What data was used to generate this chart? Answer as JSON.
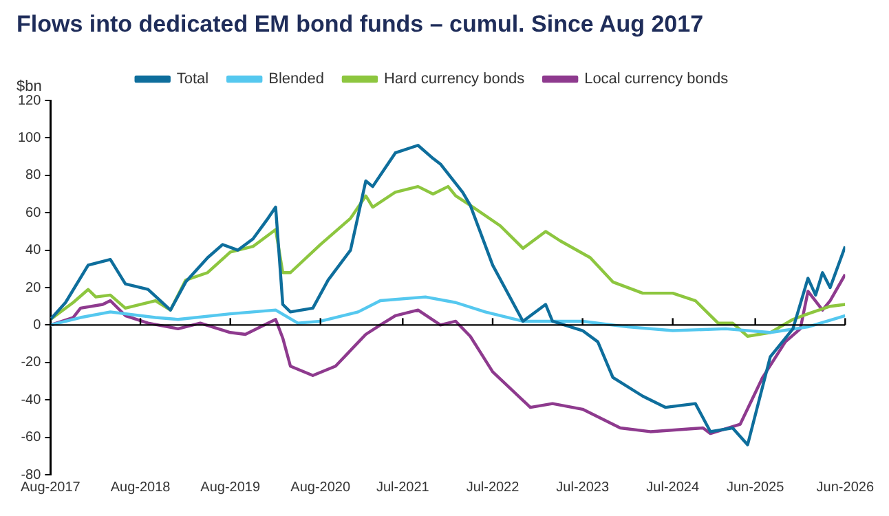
{
  "chart_data": {
    "type": "line",
    "title": "Flows into dedicated EM bond funds – cumul. Since Aug 2017",
    "ylabel": "$bn",
    "xlim": [
      "2017-08",
      "2026-06"
    ],
    "xticks": [
      {
        "value": "2017-08",
        "label": "Aug-2017"
      },
      {
        "value": "2018-08",
        "label": "Aug-2018"
      },
      {
        "value": "2019-08",
        "label": "Aug-2019"
      },
      {
        "value": "2020-08",
        "label": "Aug-2020"
      },
      {
        "value": "2021-07",
        "label": "Jul-2021"
      },
      {
        "value": "2022-07",
        "label": "Jul-2022"
      },
      {
        "value": "2023-07",
        "label": "Jul-2023"
      },
      {
        "value": "2024-07",
        "label": "Jul-2024"
      },
      {
        "value": "2025-06",
        "label": "Jun-2025"
      },
      {
        "value": "2026-06",
        "label": "Jun-2026"
      }
    ],
    "ylim": [
      -80,
      120
    ],
    "yticks": [
      -80,
      -60,
      -40,
      -20,
      0,
      20,
      40,
      60,
      80,
      100,
      120
    ],
    "grid": false,
    "legend": "top",
    "marker": "none",
    "line_style": "solid",
    "ref_lines": [
      {
        "axis": "y",
        "value": 0,
        "color": "#000000"
      }
    ],
    "series": [
      {
        "name": "Total",
        "color": "#0e6e9c",
        "x": [
          "2017-08",
          "2017-10",
          "2018-01",
          "2018-04",
          "2018-06",
          "2018-09",
          "2018-12",
          "2019-02",
          "2019-05",
          "2019-07",
          "2019-09",
          "2019-11",
          "2020-01",
          "2020-02",
          "2020-03",
          "2020-04",
          "2020-07",
          "2020-09",
          "2020-12",
          "2021-02",
          "2021-03",
          "2021-06",
          "2021-09",
          "2021-11",
          "2021-12",
          "2022-03",
          "2022-04",
          "2022-07",
          "2022-11",
          "2023-02",
          "2023-03",
          "2023-07",
          "2023-09",
          "2023-11",
          "2024-03",
          "2024-06",
          "2024-10",
          "2024-12",
          "2025-03",
          "2025-05",
          "2025-08",
          "2025-11",
          "2026-01",
          "2026-02",
          "2026-03",
          "2026-04",
          "2026-06"
        ],
        "values": [
          3,
          12,
          32,
          35,
          22,
          19,
          8,
          23,
          36,
          43,
          40,
          46,
          57,
          63,
          11,
          7,
          9,
          24,
          40,
          77,
          74,
          92,
          96,
          89,
          86,
          71,
          64,
          32,
          2,
          11,
          2,
          -3,
          -9,
          -28,
          -38,
          -44,
          -42,
          -57,
          -55,
          -64,
          -17,
          -2,
          25,
          16,
          28,
          20,
          42
        ]
      },
      {
        "name": "Blended",
        "color": "#55c8ef",
        "x": [
          "2017-08",
          "2017-12",
          "2018-04",
          "2018-10",
          "2019-01",
          "2019-08",
          "2020-02",
          "2020-05",
          "2020-08",
          "2021-01",
          "2021-04",
          "2021-10",
          "2022-02",
          "2022-06",
          "2022-11",
          "2023-07",
          "2024-01",
          "2024-07",
          "2025-02",
          "2025-08",
          "2026-01",
          "2026-06"
        ],
        "values": [
          0,
          4,
          7,
          4,
          3,
          6,
          8,
          1,
          2,
          7,
          13,
          15,
          12,
          7,
          2,
          2,
          -1,
          -3,
          -2,
          -4,
          -1,
          5
        ]
      },
      {
        "name": "Hard currency bonds",
        "color": "#8dc63f",
        "x": [
          "2017-08",
          "2017-11",
          "2018-01",
          "2018-02",
          "2018-04",
          "2018-06",
          "2018-10",
          "2018-12",
          "2019-02",
          "2019-05",
          "2019-08",
          "2019-11",
          "2020-02",
          "2020-03",
          "2020-04",
          "2020-08",
          "2020-12",
          "2021-02",
          "2021-03",
          "2021-06",
          "2021-09",
          "2021-11",
          "2022-01",
          "2022-02",
          "2022-04",
          "2022-08",
          "2022-11",
          "2023-02",
          "2023-04",
          "2023-08",
          "2023-11",
          "2024-03",
          "2024-07",
          "2024-10",
          "2025-01",
          "2025-03",
          "2025-05",
          "2025-08",
          "2025-11",
          "2026-01",
          "2026-04",
          "2026-06"
        ],
        "values": [
          3,
          12,
          19,
          15,
          16,
          9,
          13,
          8,
          24,
          28,
          39,
          42,
          51,
          28,
          28,
          43,
          57,
          69,
          63,
          71,
          74,
          70,
          74,
          69,
          64,
          53,
          41,
          50,
          45,
          36,
          23,
          17,
          17,
          13,
          1,
          1,
          -6,
          -4,
          3,
          6,
          10,
          11
        ]
      },
      {
        "name": "Local currency bonds",
        "color": "#8e3a8e",
        "x": [
          "2017-08",
          "2017-11",
          "2017-12",
          "2018-03",
          "2018-04",
          "2018-06",
          "2018-09",
          "2019-01",
          "2019-04",
          "2019-08",
          "2019-10",
          "2020-02",
          "2020-03",
          "2020-04",
          "2020-07",
          "2020-10",
          "2021-02",
          "2021-04",
          "2021-06",
          "2021-09",
          "2021-12",
          "2022-02",
          "2022-04",
          "2022-07",
          "2022-12",
          "2023-03",
          "2023-07",
          "2023-12",
          "2024-04",
          "2024-11",
          "2024-12",
          "2025-04",
          "2025-07",
          "2025-10",
          "2025-12",
          "2026-01",
          "2026-03",
          "2026-04",
          "2026-06"
        ],
        "values": [
          0,
          4,
          9,
          11,
          13,
          5,
          1,
          -2,
          1,
          -4,
          -5,
          3,
          -7,
          -22,
          -27,
          -22,
          -5,
          0,
          5,
          8,
          0,
          2,
          -6,
          -25,
          -44,
          -42,
          -45,
          -55,
          -57,
          -55,
          -58,
          -53,
          -28,
          -9,
          -2,
          18,
          8,
          13,
          27
        ]
      }
    ]
  }
}
